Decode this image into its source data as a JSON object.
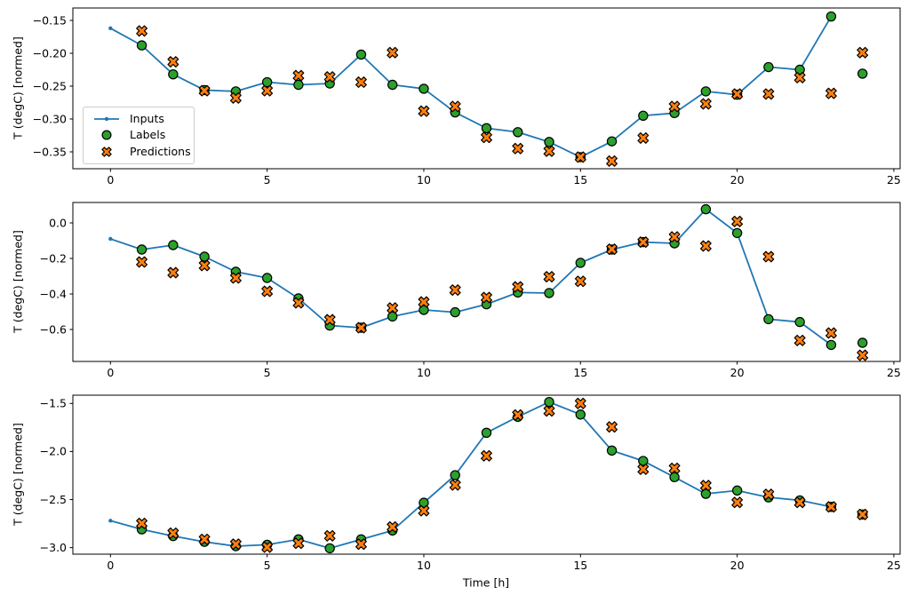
{
  "figure": {
    "background": "#ffffff",
    "xlabel": "Time [h]",
    "legend": {
      "items": [
        {
          "label": "Inputs",
          "marker": "line-dot",
          "color": "#1f77b4"
        },
        {
          "label": "Labels",
          "marker": "circle",
          "color": "#2ca02c"
        },
        {
          "label": "Predictions",
          "marker": "x",
          "color": "#ff7f0e"
        }
      ]
    }
  },
  "colors": {
    "inputs": "#1f77b4",
    "labels": "#2ca02c",
    "predictions": "#ff7f0e",
    "edge": "#000000",
    "spine": "#000000",
    "legend_border": "#cccccc"
  },
  "chart_data": [
    {
      "type": "line",
      "ylabel": "T (degC) [normed]",
      "xlim": [
        -1.2,
        25.2
      ],
      "ylim": [
        -0.3757,
        -0.1311
      ],
      "xticks": [
        {
          "v": 0,
          "label": "0"
        },
        {
          "v": 5,
          "label": "5"
        },
        {
          "v": 10,
          "label": "10"
        },
        {
          "v": 15,
          "label": "15"
        },
        {
          "v": 20,
          "label": "20"
        },
        {
          "v": 25,
          "label": "25"
        }
      ],
      "yticks": [
        {
          "v": -0.15,
          "label": "−0.15"
        },
        {
          "v": -0.2,
          "label": "−0.20"
        },
        {
          "v": -0.25,
          "label": "−0.25"
        },
        {
          "v": -0.3,
          "label": "−0.30"
        },
        {
          "v": -0.35,
          "label": "−0.35"
        }
      ],
      "series": {
        "inputs": {
          "x": [
            0,
            1,
            2,
            3,
            4,
            5,
            6,
            7,
            8,
            9,
            10,
            11,
            12,
            13,
            14,
            15,
            16,
            17,
            18,
            19,
            20,
            21,
            22,
            23
          ],
          "y": [
            -0.162,
            -0.188,
            -0.232,
            -0.256,
            -0.258,
            -0.244,
            -0.248,
            -0.246,
            -0.202,
            -0.248,
            -0.254,
            -0.29,
            -0.314,
            -0.32,
            -0.335,
            -0.358,
            -0.334,
            -0.295,
            -0.291,
            -0.258,
            -0.263,
            -0.221,
            -0.225,
            -0.144
          ]
        },
        "labels": {
          "x": [
            1,
            2,
            3,
            4,
            5,
            6,
            7,
            8,
            9,
            10,
            11,
            12,
            13,
            14,
            15,
            16,
            17,
            18,
            19,
            20,
            21,
            22,
            23,
            24
          ],
          "y": [
            -0.188,
            -0.232,
            -0.256,
            -0.258,
            -0.244,
            -0.248,
            -0.246,
            -0.202,
            -0.248,
            -0.254,
            -0.29,
            -0.314,
            -0.32,
            -0.335,
            -0.358,
            -0.334,
            -0.295,
            -0.291,
            -0.258,
            -0.263,
            -0.221,
            -0.225,
            -0.144,
            -0.231
          ]
        },
        "predictions": {
          "x": [
            1,
            2,
            3,
            4,
            5,
            6,
            7,
            8,
            9,
            10,
            11,
            12,
            13,
            14,
            15,
            16,
            17,
            18,
            19,
            20,
            21,
            22,
            23,
            24
          ],
          "y": [
            -0.166,
            -0.213,
            -0.257,
            -0.268,
            -0.257,
            -0.234,
            -0.236,
            -0.244,
            -0.199,
            -0.288,
            -0.281,
            -0.328,
            -0.345,
            -0.349,
            -0.358,
            -0.364,
            -0.329,
            -0.281,
            -0.277,
            -0.262,
            -0.262,
            -0.237,
            -0.261,
            -0.199
          ]
        }
      }
    },
    {
      "type": "line",
      "ylabel": "T (degC) [normed]",
      "xlim": [
        -1.2,
        25.2
      ],
      "ylim": [
        -0.78,
        0.115
      ],
      "xticks": [
        {
          "v": 0,
          "label": "0"
        },
        {
          "v": 5,
          "label": "5"
        },
        {
          "v": 10,
          "label": "10"
        },
        {
          "v": 15,
          "label": "15"
        },
        {
          "v": 20,
          "label": "20"
        },
        {
          "v": 25,
          "label": "25"
        }
      ],
      "yticks": [
        {
          "v": 0.0,
          "label": "0.0"
        },
        {
          "v": -0.2,
          "label": "−0.2"
        },
        {
          "v": -0.4,
          "label": "−0.4"
        },
        {
          "v": -0.6,
          "label": "−0.6"
        }
      ],
      "series": {
        "inputs": {
          "x": [
            0,
            1,
            2,
            3,
            4,
            5,
            6,
            7,
            8,
            9,
            10,
            11,
            12,
            13,
            14,
            15,
            16,
            17,
            18,
            19,
            20,
            21,
            22,
            23
          ],
          "y": [
            -0.09,
            -0.15,
            -0.125,
            -0.19,
            -0.275,
            -0.31,
            -0.425,
            -0.578,
            -0.59,
            -0.527,
            -0.49,
            -0.503,
            -0.458,
            -0.392,
            -0.395,
            -0.225,
            -0.15,
            -0.108,
            -0.115,
            0.077,
            -0.057,
            -0.542,
            -0.558,
            -0.687
          ]
        },
        "labels": {
          "x": [
            1,
            2,
            3,
            4,
            5,
            6,
            7,
            8,
            9,
            10,
            11,
            12,
            13,
            14,
            15,
            16,
            17,
            18,
            19,
            20,
            21,
            22,
            23,
            24
          ],
          "y": [
            -0.15,
            -0.125,
            -0.19,
            -0.275,
            -0.31,
            -0.425,
            -0.578,
            -0.59,
            -0.527,
            -0.49,
            -0.503,
            -0.458,
            -0.392,
            -0.395,
            -0.225,
            -0.15,
            -0.108,
            -0.115,
            0.077,
            -0.057,
            -0.542,
            -0.558,
            -0.687,
            -0.675
          ]
        },
        "predictions": {
          "x": [
            1,
            2,
            3,
            4,
            5,
            6,
            7,
            8,
            9,
            10,
            11,
            12,
            13,
            14,
            15,
            16,
            17,
            18,
            19,
            20,
            21,
            22,
            23,
            24
          ],
          "y": [
            -0.22,
            -0.28,
            -0.24,
            -0.31,
            -0.385,
            -0.45,
            -0.545,
            -0.59,
            -0.479,
            -0.445,
            -0.378,
            -0.42,
            -0.36,
            -0.303,
            -0.329,
            -0.148,
            -0.108,
            -0.079,
            -0.13,
            0.008,
            -0.19,
            -0.662,
            -0.62,
            -0.745
          ]
        }
      }
    },
    {
      "type": "line",
      "ylabel": "T (degC) [normed]",
      "xlim": [
        -1.2,
        25.2
      ],
      "ylim": [
        -3.068,
        -1.414
      ],
      "xticks": [
        {
          "v": 0,
          "label": "0"
        },
        {
          "v": 5,
          "label": "5"
        },
        {
          "v": 10,
          "label": "10"
        },
        {
          "v": 15,
          "label": "15"
        },
        {
          "v": 20,
          "label": "20"
        },
        {
          "v": 25,
          "label": "25"
        }
      ],
      "yticks": [
        {
          "v": -1.5,
          "label": "−1.5"
        },
        {
          "v": -2.0,
          "label": "−2.0"
        },
        {
          "v": -2.5,
          "label": "−2.5"
        },
        {
          "v": -3.0,
          "label": "−3.0"
        }
      ],
      "series": {
        "inputs": {
          "x": [
            0,
            1,
            2,
            3,
            4,
            5,
            6,
            7,
            8,
            9,
            10,
            11,
            12,
            13,
            14,
            15,
            16,
            17,
            18,
            19,
            20,
            21,
            22,
            23
          ],
          "y": [
            -2.72,
            -2.81,
            -2.88,
            -2.94,
            -2.985,
            -2.97,
            -2.914,
            -3.007,
            -2.914,
            -2.822,
            -2.533,
            -2.246,
            -1.805,
            -1.639,
            -1.485,
            -1.615,
            -1.99,
            -2.098,
            -2.267,
            -2.44,
            -2.406,
            -2.477,
            -2.508,
            -2.576
          ]
        },
        "labels": {
          "x": [
            1,
            2,
            3,
            4,
            5,
            6,
            7,
            8,
            9,
            10,
            11,
            12,
            13,
            14,
            15,
            16,
            17,
            18,
            19,
            20,
            21,
            22,
            23,
            24
          ],
          "y": [
            -2.81,
            -2.88,
            -2.94,
            -2.985,
            -2.97,
            -2.914,
            -3.007,
            -2.914,
            -2.822,
            -2.533,
            -2.246,
            -1.805,
            -1.639,
            -1.485,
            -1.615,
            -1.99,
            -2.098,
            -2.267,
            -2.44,
            -2.406,
            -2.477,
            -2.508,
            -2.576,
            -2.655
          ]
        },
        "predictions": {
          "x": [
            1,
            2,
            3,
            4,
            5,
            6,
            7,
            8,
            9,
            10,
            11,
            12,
            13,
            14,
            15,
            16,
            17,
            18,
            19,
            20,
            21,
            22,
            23,
            24
          ],
          "y": [
            -2.748,
            -2.85,
            -2.914,
            -2.964,
            -2.995,
            -2.955,
            -2.877,
            -2.964,
            -2.785,
            -2.616,
            -2.348,
            -2.045,
            -1.62,
            -1.578,
            -1.5,
            -1.744,
            -2.184,
            -2.175,
            -2.354,
            -2.53,
            -2.446,
            -2.53,
            -2.576,
            -2.655
          ]
        }
      }
    }
  ]
}
